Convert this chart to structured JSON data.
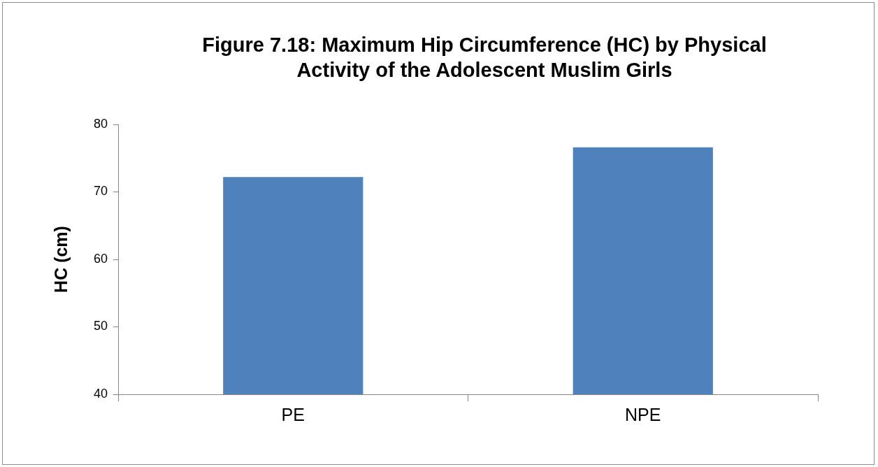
{
  "chart_data": {
    "type": "bar",
    "title": "Figure 7.18: Maximum Hip Circumference (HC) by Physical Activity of the Adolescent Muslim Girls",
    "ylabel": "HC (cm)",
    "categories": [
      "PE",
      "NPE"
    ],
    "values": [
      72.2,
      76.6
    ],
    "color": "#4f81bd",
    "ylim": [
      40,
      80
    ],
    "yticks": [
      40,
      50,
      60,
      70,
      80
    ],
    "grid": false,
    "legend": false
  }
}
